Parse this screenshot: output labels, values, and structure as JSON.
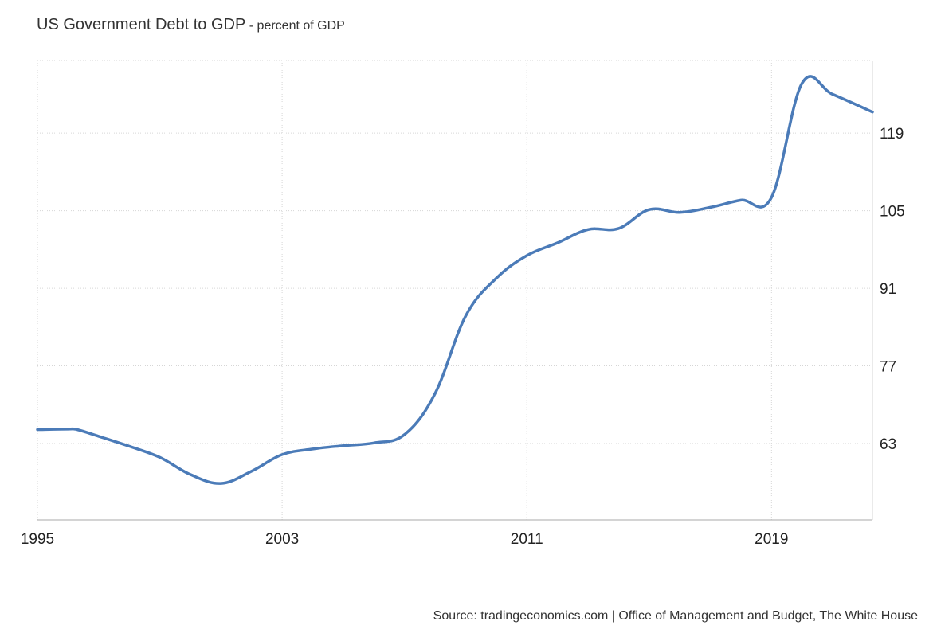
{
  "header": {
    "title": "US Government Debt to GDP",
    "separator": " - ",
    "subtitle": "percent of GDP"
  },
  "source": "Source: tradingeconomics.com | Office of Management and Budget, The White House",
  "colors": {
    "line": "#4b7bb8",
    "grid": "#d6d6d6",
    "axis": "#aaaaaa",
    "text": "#333333"
  },
  "chart_data": {
    "type": "line",
    "title": "US Government Debt to GDP",
    "subtitle": "percent of GDP",
    "xlabel": "",
    "ylabel": "",
    "x_ticks": [
      "1995",
      "2003",
      "2011",
      "2019"
    ],
    "y_ticks": [
      63,
      77,
      91,
      105,
      119
    ],
    "xlim": [
      1995,
      2022.3
    ],
    "ylim": [
      49.2,
      132.1
    ],
    "y_axis_position": "right",
    "grid": true,
    "legend": "none",
    "series": [
      {
        "x": [
          1995,
          1996,
          1996.3,
          1997,
          1998,
          1999,
          2000,
          2001,
          2002,
          2003,
          2004,
          2005,
          2006,
          2007,
          2008,
          2009,
          2010,
          2011,
          2012,
          2013,
          2014,
          2015,
          2016,
          2017,
          2018,
          2019,
          2020,
          2021,
          2022.3
        ],
        "values": [
          65.5,
          65.6,
          65.5,
          64.3,
          62.5,
          60.5,
          57.4,
          55.8,
          58.0,
          61.0,
          62.0,
          62.6,
          63.1,
          64.6,
          72.0,
          86.0,
          92.8,
          96.9,
          99.2,
          101.6,
          101.8,
          105.2,
          104.7,
          105.6,
          106.9,
          107.4,
          128.0,
          126.0,
          122.8
        ]
      }
    ]
  }
}
